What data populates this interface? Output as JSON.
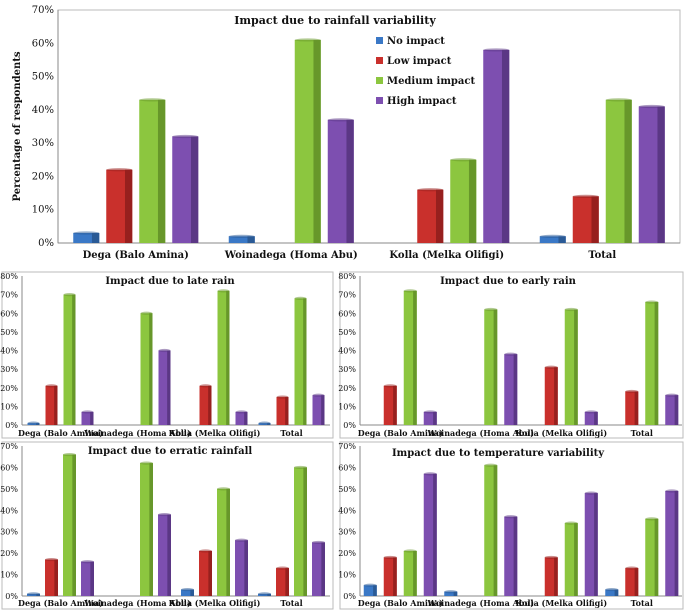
{
  "legend": [
    "No impact",
    "Low impact",
    "Medium impact",
    "High impact"
  ],
  "colors": [
    "#3a78c6",
    "#c9302c",
    "#8cc63f",
    "#7d4fb0"
  ],
  "colors_dark": [
    "#2a5a96",
    "#97201e",
    "#67972a",
    "#5b3785"
  ],
  "chart_data": [
    {
      "type": "bar",
      "title": "Impact due to rainfall variability",
      "ylabel": "Percentage of respondents",
      "categories": [
        "Dega (Balo Amina)",
        "Woinadega (Homa Abu)",
        "Kolla (Melka Olifigi)",
        "Total"
      ],
      "ylim": [
        0,
        70
      ],
      "yticks": [
        "0%",
        "10%",
        "20%",
        "30%",
        "40%",
        "50%",
        "60%",
        "70%"
      ],
      "series": [
        {
          "name": "No impact",
          "values": [
            3,
            2,
            0,
            2
          ]
        },
        {
          "name": "Low impact",
          "values": [
            22,
            0,
            16,
            14
          ]
        },
        {
          "name": "Medium impact",
          "values": [
            43,
            61,
            25,
            43
          ]
        },
        {
          "name": "High impact",
          "values": [
            32,
            37,
            58,
            41
          ]
        }
      ]
    },
    {
      "type": "bar",
      "title": "Impact due to late rain",
      "categories": [
        "Dega (Balo Amina)",
        "Woinadega (Homa Abu)",
        "Kolla (Melka Olifigi)",
        "Total"
      ],
      "ylim": [
        0,
        80
      ],
      "yticks": [
        "0%",
        "10%",
        "20%",
        "30%",
        "40%",
        "50%",
        "60%",
        "70%",
        "80%"
      ],
      "series": [
        {
          "name": "No impact",
          "values": [
            1,
            0,
            0,
            1
          ]
        },
        {
          "name": "Low impact",
          "values": [
            21,
            0,
            21,
            15
          ]
        },
        {
          "name": "Medium impact",
          "values": [
            70,
            60,
            72,
            68
          ]
        },
        {
          "name": "High impact",
          "values": [
            7,
            40,
            7,
            16
          ]
        }
      ]
    },
    {
      "type": "bar",
      "title": "Impact due to early rain",
      "categories": [
        "Dega (Balo Amina)",
        "Woinadega (Homa Abu)",
        "Kolla (Melka Olifigi)",
        "Total"
      ],
      "ylim": [
        0,
        80
      ],
      "yticks": [
        "0%",
        "10%",
        "20%",
        "30%",
        "40%",
        "50%",
        "60%",
        "70%",
        "80%"
      ],
      "series": [
        {
          "name": "No impact",
          "values": [
            0,
            0,
            0,
            0
          ]
        },
        {
          "name": "Low impact",
          "values": [
            21,
            0,
            31,
            18
          ]
        },
        {
          "name": "Medium impact",
          "values": [
            72,
            62,
            62,
            66
          ]
        },
        {
          "name": "High impact",
          "values": [
            7,
            38,
            7,
            16
          ]
        }
      ]
    },
    {
      "type": "bar",
      "title": "Impact due to erratic rainfall",
      "categories": [
        "Dega (Balo Amina)",
        "Woinadega (Homa Abu)",
        "Kolla (Melka Olifigi)",
        "Total"
      ],
      "ylim": [
        0,
        70
      ],
      "yticks": [
        "0%",
        "10%",
        "20%",
        "30%",
        "40%",
        "50%",
        "60%",
        "70%"
      ],
      "series": [
        {
          "name": "No impact",
          "values": [
            1,
            0,
            3,
            1
          ]
        },
        {
          "name": "Low impact",
          "values": [
            17,
            0,
            21,
            13
          ]
        },
        {
          "name": "Medium impact",
          "values": [
            66,
            62,
            50,
            60
          ]
        },
        {
          "name": "High impact",
          "values": [
            16,
            38,
            26,
            25
          ]
        }
      ]
    },
    {
      "type": "bar",
      "title": "Impact due to temperature variability",
      "categories": [
        "Dega (Balo Amina)",
        "Woinadega (Homa Abu)",
        "Kolla (Melka Olifigi)",
        "Total"
      ],
      "ylim": [
        0,
        70
      ],
      "yticks": [
        "0%",
        "10%",
        "20%",
        "30%",
        "40%",
        "50%",
        "60%",
        "70%"
      ],
      "series": [
        {
          "name": "No impact",
          "values": [
            5,
            2,
            0,
            3
          ]
        },
        {
          "name": "Low impact",
          "values": [
            18,
            0,
            18,
            13
          ]
        },
        {
          "name": "Medium impact",
          "values": [
            21,
            61,
            34,
            36
          ]
        },
        {
          "name": "High impact",
          "values": [
            57,
            37,
            48,
            49
          ]
        }
      ]
    }
  ]
}
